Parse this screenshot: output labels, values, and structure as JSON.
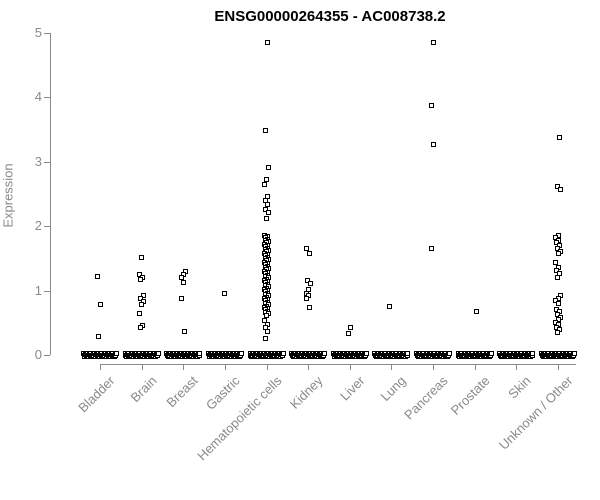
{
  "chart_data": {
    "type": "scatter",
    "subtype": "strip-chart",
    "title": "ENSG00000264355 - AC008738.2",
    "xlabel": "",
    "ylabel": "Expression",
    "ylim": [
      0,
      5
    ],
    "y_ticks": [
      0,
      1,
      2,
      3,
      4,
      5
    ],
    "grid": false,
    "legend": "none",
    "marker": "open-square",
    "categories": [
      "Bladder",
      "Brain",
      "Breast",
      "Gastric",
      "Hematopoietic cells",
      "Kidney",
      "Liver",
      "Lung",
      "Pancreas",
      "Prostate",
      "Skin",
      "Unknown / Other"
    ],
    "series": [
      {
        "name": "Bladder",
        "zero_cluster": true,
        "values": [
          1.22,
          0.78,
          0.28
        ]
      },
      {
        "name": "Brain",
        "zero_cluster": true,
        "values": [
          1.52,
          1.25,
          1.21,
          1.17,
          0.92,
          0.87,
          0.83,
          0.78,
          0.65,
          0.46,
          0.43
        ]
      },
      {
        "name": "Breast",
        "zero_cluster": true,
        "values": [
          1.29,
          1.25,
          1.2,
          1.13,
          0.87,
          0.36
        ]
      },
      {
        "name": "Gastric",
        "zero_cluster": true,
        "values": [
          0.95
        ]
      },
      {
        "name": "Hematopoietic cells",
        "zero_cluster": true,
        "values": [
          4.86,
          3.49,
          2.91,
          2.72,
          2.65,
          2.46,
          2.4,
          2.33,
          2.26,
          2.21,
          2.12,
          1.86,
          1.84,
          1.82,
          1.8,
          1.78,
          1.76,
          1.74,
          1.72,
          1.7,
          1.68,
          1.66,
          1.64,
          1.62,
          1.6,
          1.58,
          1.56,
          1.54,
          1.52,
          1.5,
          1.48,
          1.46,
          1.44,
          1.42,
          1.4,
          1.38,
          1.36,
          1.34,
          1.32,
          1.3,
          1.28,
          1.26,
          1.24,
          1.22,
          1.2,
          1.18,
          1.16,
          1.14,
          1.12,
          1.1,
          1.08,
          1.06,
          1.04,
          1.02,
          1.0,
          0.98,
          0.96,
          0.94,
          0.92,
          0.9,
          0.88,
          0.86,
          0.84,
          0.82,
          0.8,
          0.78,
          0.76,
          0.74,
          0.72,
          0.7,
          0.68,
          0.66,
          0.64,
          0.62,
          0.54,
          0.47,
          0.43,
          0.36,
          0.26
        ]
      },
      {
        "name": "Kidney",
        "zero_cluster": true,
        "values": [
          1.66,
          1.58,
          1.16,
          1.11,
          1.02,
          0.96,
          0.92,
          0.87,
          0.73
        ]
      },
      {
        "name": "Liver",
        "zero_cluster": true,
        "values": [
          0.42,
          0.34
        ]
      },
      {
        "name": "Lung",
        "zero_cluster": true,
        "values": [
          0.76
        ]
      },
      {
        "name": "Pancreas",
        "zero_cluster": true,
        "values": [
          4.85,
          3.87,
          3.27,
          1.66
        ]
      },
      {
        "name": "Prostate",
        "zero_cluster": true,
        "values": [
          0.67
        ]
      },
      {
        "name": "Skin",
        "zero_cluster": true,
        "values": []
      },
      {
        "name": "Unknown / Other",
        "zero_cluster": true,
        "values": [
          3.38,
          2.62,
          2.57,
          1.86,
          1.83,
          1.78,
          1.74,
          1.7,
          1.65,
          1.61,
          1.57,
          1.43,
          1.36,
          1.31,
          1.26,
          1.21,
          0.93,
          0.88,
          0.84,
          0.8,
          0.71,
          0.67,
          0.63,
          0.59,
          0.55,
          0.51,
          0.47,
          0.43,
          0.39,
          0.35
        ]
      }
    ]
  },
  "colors": {
    "background": "#ffffff",
    "title": "#000000",
    "axis": "#898989",
    "point": "#000000"
  }
}
